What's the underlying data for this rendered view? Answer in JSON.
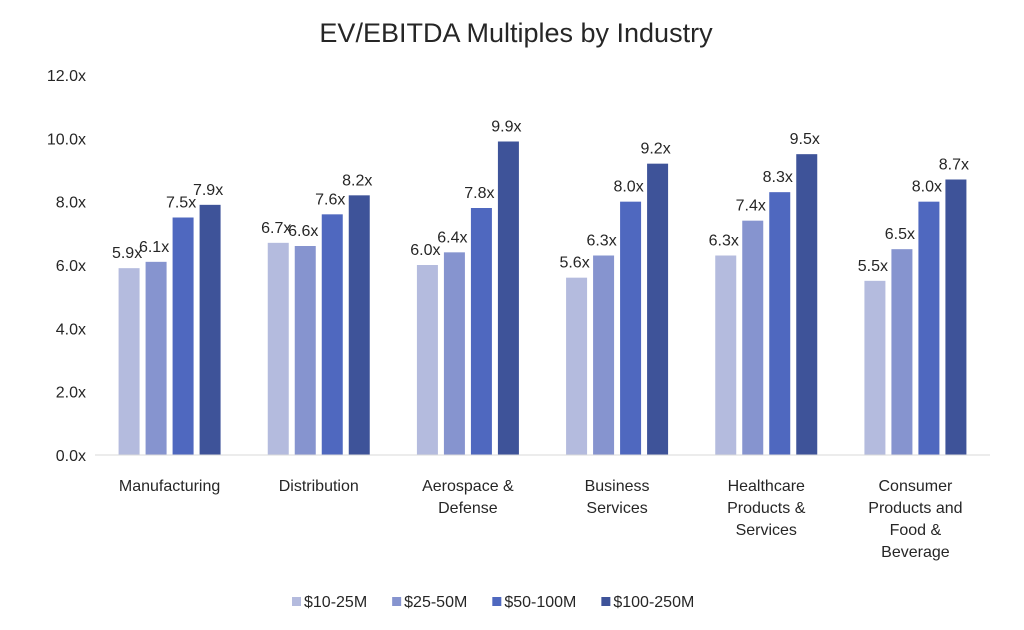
{
  "chart_data": {
    "type": "bar",
    "title": "EV/EBITDA Multiples by Industry",
    "xlabel": "",
    "ylabel": "",
    "ylim": [
      0,
      12
    ],
    "yticks": [
      "0.0x",
      "2.0x",
      "4.0x",
      "6.0x",
      "8.0x",
      "10.0x",
      "12.0x"
    ],
    "grid": false,
    "legend_position": "bottom",
    "categories": [
      [
        "Manufacturing"
      ],
      [
        "Distribution"
      ],
      [
        "Aerospace &",
        "Defense"
      ],
      [
        "Business",
        "Services"
      ],
      [
        "Healthcare",
        "Products &",
        "Services"
      ],
      [
        "Consumer",
        "Products and",
        "Food &",
        "Beverage"
      ]
    ],
    "series": [
      {
        "name": "$10-25M",
        "color": "#b4bbde",
        "values": [
          5.9,
          6.7,
          6.0,
          5.6,
          6.3,
          5.5
        ]
      },
      {
        "name": "$25-50M",
        "color": "#8694cf",
        "values": [
          6.1,
          6.6,
          6.4,
          6.3,
          7.4,
          6.5
        ]
      },
      {
        "name": "$50-100M",
        "color": "#4f68bf",
        "values": [
          7.5,
          7.6,
          7.8,
          8.0,
          8.3,
          8.0
        ]
      },
      {
        "name": "$100-250M",
        "color": "#3e5399",
        "values": [
          7.9,
          8.2,
          9.9,
          9.2,
          9.5,
          8.7
        ]
      }
    ]
  }
}
